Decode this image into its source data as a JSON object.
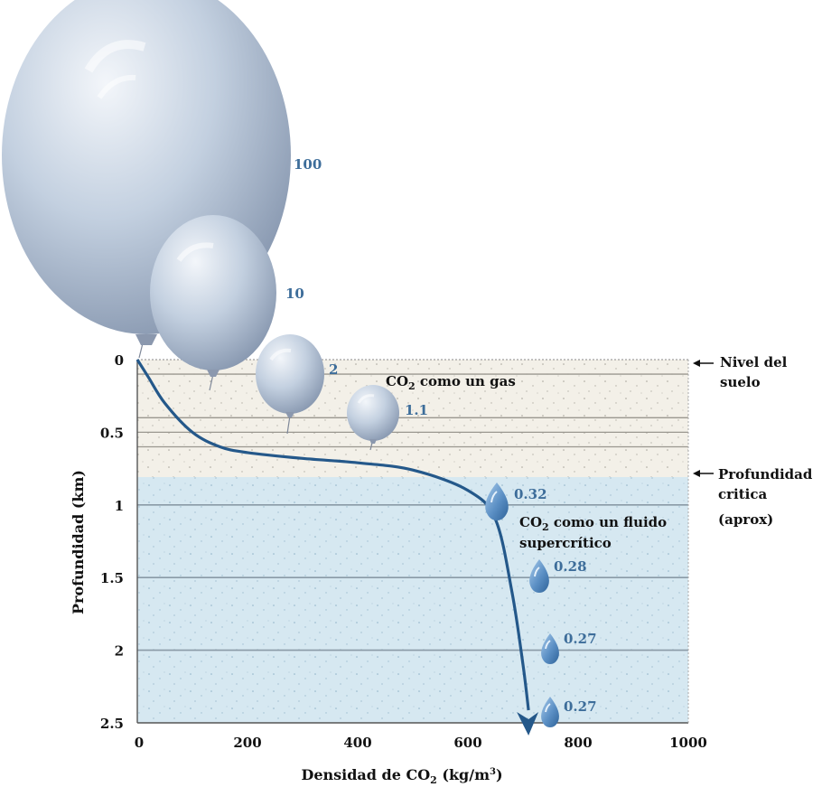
{
  "axes": {
    "x_label": "Densidad de CO",
    "x_label_sub": "2",
    "x_label_unit": " (kg/m",
    "x_label_sup": "3",
    "x_label_close": ")",
    "y_label": "Profundidad (km)",
    "x_ticks": [
      "0",
      "200",
      "400",
      "600",
      "800",
      "1000"
    ],
    "y_ticks": [
      "0",
      "0.5",
      "1",
      "1.5",
      "2",
      "2.5"
    ],
    "xlim": [
      0,
      1000
    ],
    "ylim": [
      0,
      2.5
    ]
  },
  "annotations": {
    "ground_level": [
      "Nivel del",
      "suelo"
    ],
    "critical_depth": [
      "Profundidad",
      "critica",
      "(aprox)"
    ],
    "gas_phase_prefix": "CO",
    "gas_phase_sub": "2",
    "gas_phase_suffix": " como un gas",
    "fluid_phase_prefix": "CO",
    "fluid_phase_sub": "2",
    "fluid_phase_suffix": " como un fluido",
    "fluid_phase_line2": "supercrítico"
  },
  "critical_depth_km": 0.8,
  "colors": {
    "gas_zone": "#f3f0e8",
    "fluid_zone": "#d6e8f1",
    "curve": "#24588a",
    "value_labels": "#3d6d9a",
    "balloon": "#b7c6d9",
    "droplet": "#5b8fc4"
  },
  "balloons": [
    {
      "label": "100",
      "depth_km": 0,
      "relative_volume": 100
    },
    {
      "label": "10",
      "depth_km": 0.1,
      "relative_volume": 10
    },
    {
      "label": "2",
      "depth_km": 0.4,
      "relative_volume": 2
    },
    {
      "label": "1.1",
      "depth_km": 0.6,
      "relative_volume": 1.1
    }
  ],
  "droplets": [
    {
      "label": "0.32",
      "depth_km": 1.0,
      "relative_volume": 0.32
    },
    {
      "label": "0.28",
      "depth_km": 1.5,
      "relative_volume": 0.28
    },
    {
      "label": "0.27",
      "depth_km": 2.0,
      "relative_volume": 0.27
    },
    {
      "label": "0.27",
      "depth_km": 2.5,
      "relative_volume": 0.27
    }
  ],
  "chart_data": {
    "type": "line",
    "title": "",
    "xlabel": "Densidad de CO2 (kg/m3)",
    "ylabel": "Profundidad (km)",
    "xlim": [
      0,
      1000
    ],
    "ylim": [
      0,
      2.5
    ],
    "y_inverted": true,
    "grid": "horizontal",
    "series": [
      {
        "x": [
          0,
          20,
          50,
          100,
          150,
          200,
          300,
          400,
          500,
          600,
          650,
          680,
          700,
          710
        ],
        "y": [
          0,
          0.12,
          0.3,
          0.5,
          0.6,
          0.64,
          0.68,
          0.71,
          0.76,
          0.9,
          1.1,
          1.6,
          2.1,
          2.5
        ]
      }
    ]
  }
}
